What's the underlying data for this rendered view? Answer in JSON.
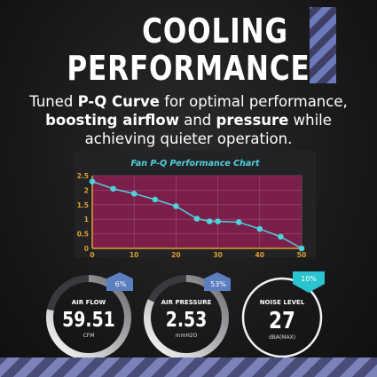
{
  "heading": {
    "line1": "COOLING",
    "line2": "PERFORMANCE"
  },
  "subtitle": {
    "p1": "Tuned ",
    "b1": "P-Q Curve",
    "p2": " for optimal performance, ",
    "b2": "boosting airflow",
    "p3": " and ",
    "b3": "pressure",
    "p4": " while achieving quieter operation."
  },
  "chart_data": {
    "type": "line",
    "title": "Fan P-Q Performance Chart",
    "xlabel": "",
    "ylabel": "",
    "xlim": [
      0,
      50
    ],
    "ylim": [
      0,
      2.5
    ],
    "xticks": [
      "0",
      "10",
      "20",
      "30",
      "40",
      "50"
    ],
    "yticks": [
      "0",
      "0.5",
      "1",
      "1.5",
      "2",
      "2.5"
    ],
    "grid": true,
    "series": [
      {
        "x": [
          0,
          5,
          10,
          15,
          20,
          25,
          28,
          30,
          35,
          40,
          45,
          50
        ],
        "y": [
          2.3,
          2.05,
          1.88,
          1.68,
          1.45,
          1.02,
          0.93,
          0.93,
          0.9,
          0.67,
          0.4,
          0.0
        ]
      }
    ]
  },
  "gauges": [
    {
      "label": "AIR FLOW",
      "value": "59.51",
      "unit": "CFM",
      "delta": "6%",
      "direction": "up",
      "fill": 0.78
    },
    {
      "label": "AIR PRESSURE",
      "value": "2.53",
      "unit": "mmH2O",
      "delta": "53%",
      "direction": "up",
      "fill": 0.82
    },
    {
      "label": "NOISE LEVEL",
      "value": "27",
      "unit": "dBA(MAX)",
      "delta": "10%",
      "direction": "down",
      "fill": 0.0
    }
  ],
  "colors": {
    "accent_cyan": "#4fd1dc",
    "chart_bg": "#7a1e4a",
    "arrow_blue": "#5b7fbf",
    "arrow_cyan": "#2ac3d0"
  }
}
